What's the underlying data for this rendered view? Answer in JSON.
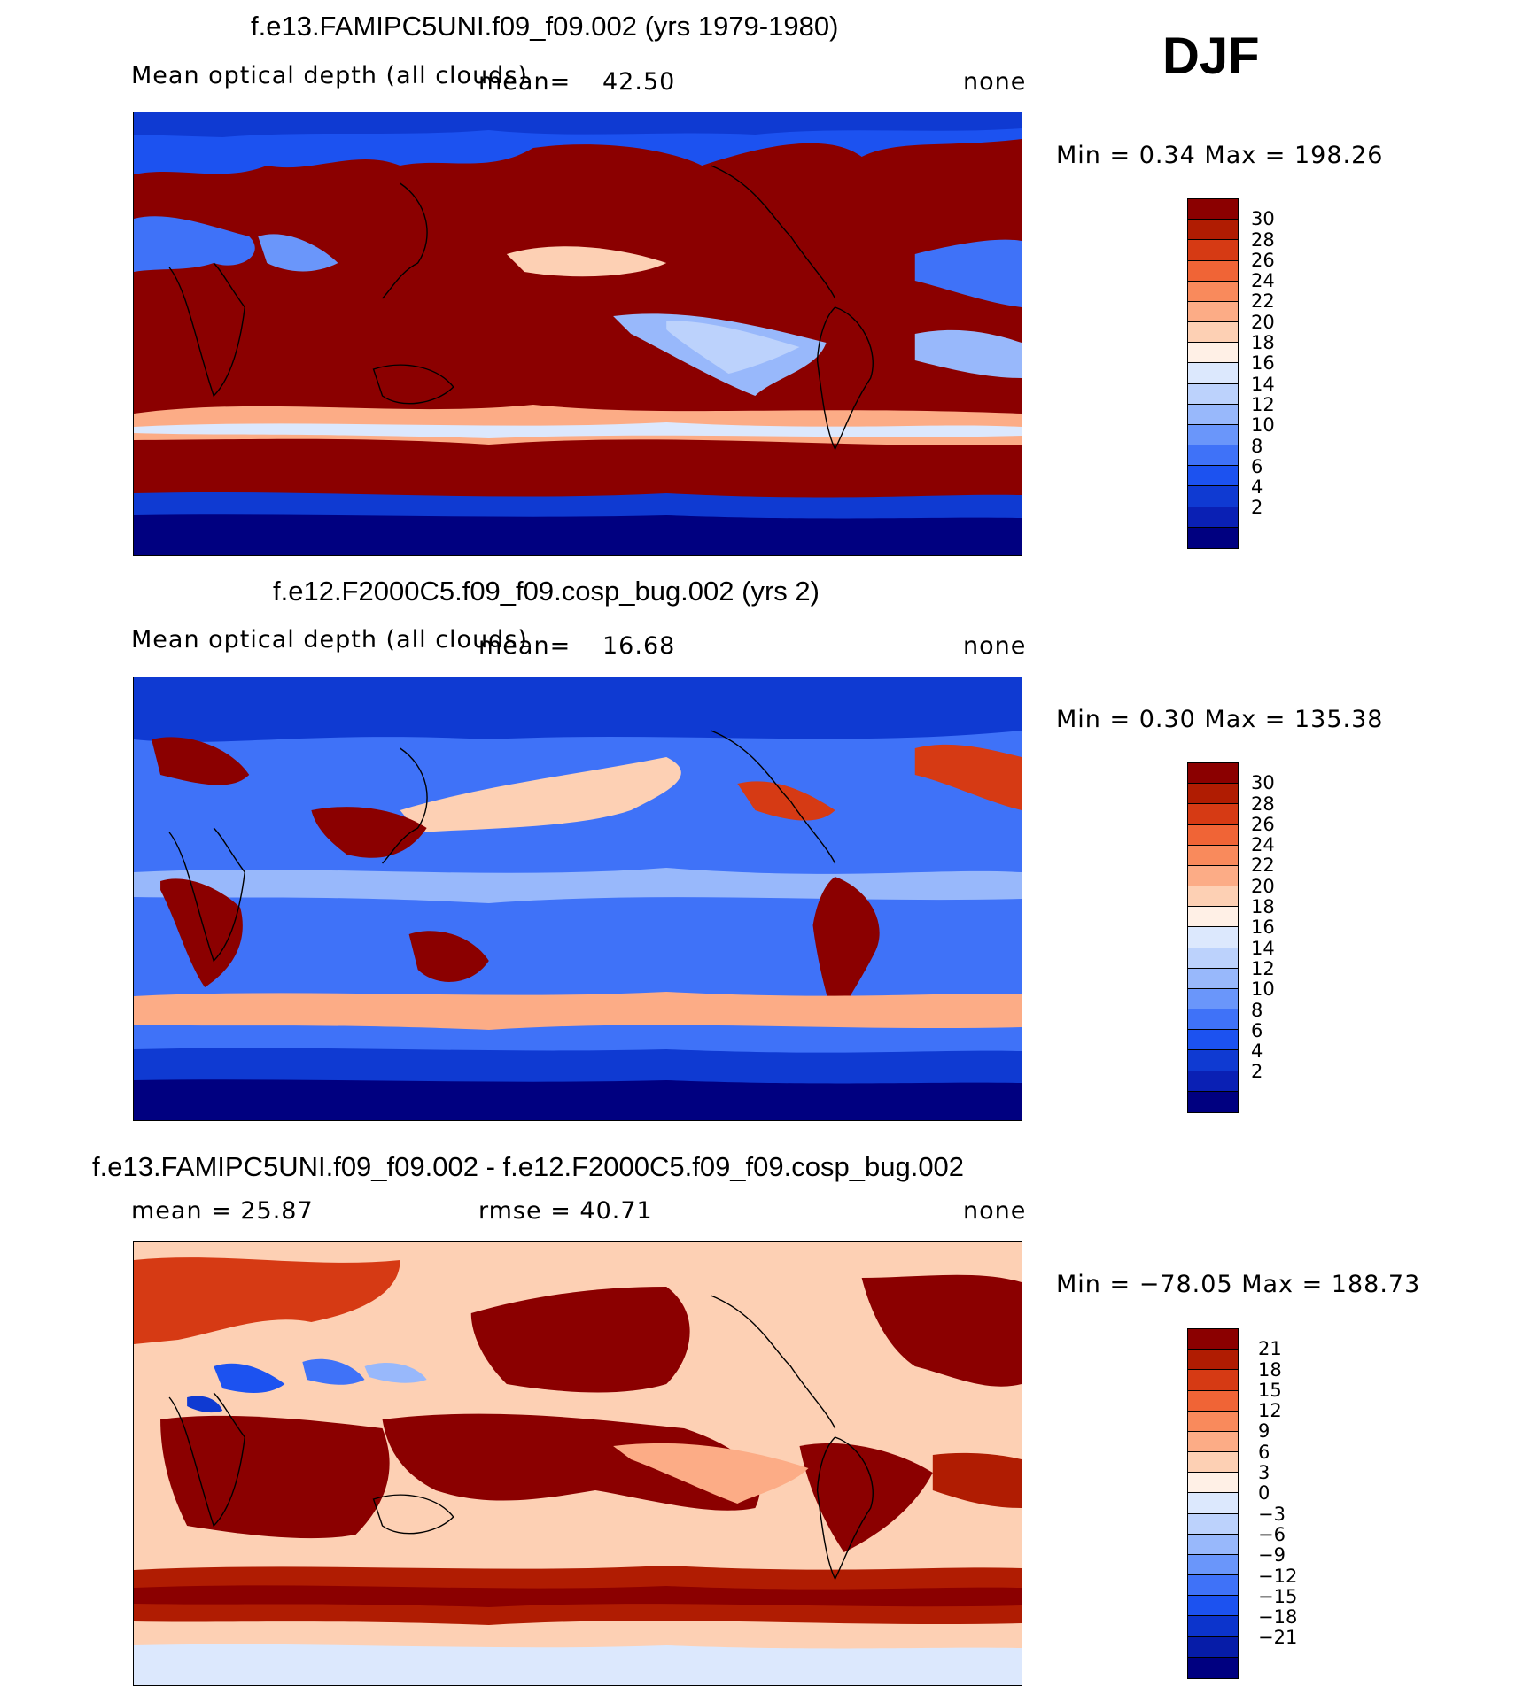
{
  "season": "DJF",
  "colors": {
    "pos_scale": [
      "#000080",
      "#0a20b4",
      "#0f3ad2",
      "#1c52f0",
      "#3f72f8",
      "#6a96fa",
      "#98b8fb",
      "#bcd2fc",
      "#dce8fd",
      "#fff0e6",
      "#fdd0b4",
      "#fcac86",
      "#f98a5c",
      "#f06436",
      "#d63a14",
      "#b01c02",
      "#8b0000"
    ],
    "diff_scale": [
      "#000080",
      "#061ca8",
      "#0c34cc",
      "#1c52f0",
      "#3f72f8",
      "#6a96fa",
      "#98b8fb",
      "#bcd2fc",
      "#dce8fd",
      "#fff0e6",
      "#fdd0b4",
      "#fcac86",
      "#f98a5c",
      "#f06436",
      "#d63a14",
      "#b01c02",
      "#8b0000"
    ]
  },
  "panels": [
    {
      "title": "f.e13.FAMIPC5UNI.f09_f09.002 (yrs 1979-1980)",
      "variable": "Mean optical depth (all clouds)",
      "mean_label": "mean=",
      "mean_value": "42.50",
      "units": "none",
      "minmax": "Min =    0.34  Max  =  198.26",
      "colorbar_ticks": [
        "30",
        "28",
        "26",
        "24",
        "22",
        "20",
        "18",
        "16",
        "14",
        "12",
        "10",
        "8",
        "6",
        "4",
        "2"
      ]
    },
    {
      "title": "f.e12.F2000C5.f09_f09.cosp_bug.002 (yrs 2)",
      "variable": "Mean optical depth (all clouds)",
      "mean_label": "mean=",
      "mean_value": "16.68",
      "units": "none",
      "minmax": "Min =    0.30  Max  =  135.38",
      "colorbar_ticks": [
        "30",
        "28",
        "26",
        "24",
        "22",
        "20",
        "18",
        "16",
        "14",
        "12",
        "10",
        "8",
        "6",
        "4",
        "2"
      ]
    },
    {
      "title": "f.e13.FAMIPC5UNI.f09_f09.002 - f.e12.F2000C5.f09_f09.cosp_bug.002",
      "mean_text": "mean  =    25.87",
      "rmse_text": "rmse  =    40.71",
      "units": "none",
      "minmax": "Min  =  −78.05  Max  =  188.73",
      "colorbar_ticks": [
        "21",
        "18",
        "15",
        "12",
        "9",
        "6",
        "3",
        "0",
        "−3",
        "−6",
        "−9",
        "−12",
        "−15",
        "−18",
        "−21"
      ]
    }
  ]
}
